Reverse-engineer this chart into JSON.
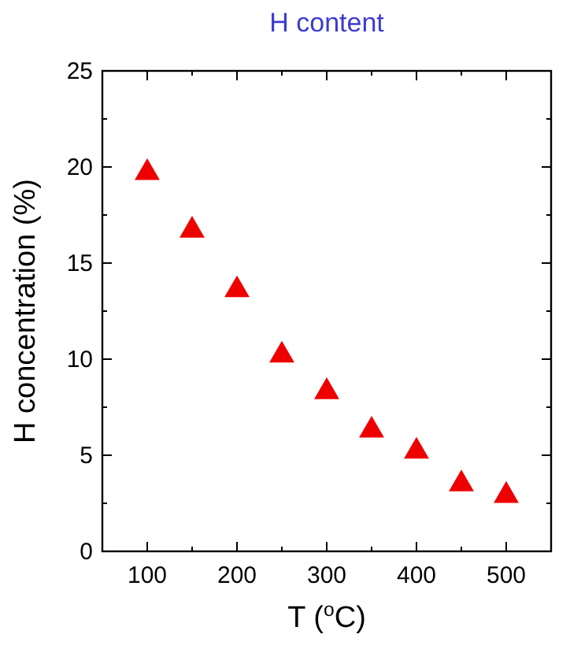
{
  "chart_data": {
    "type": "scatter",
    "title": "H content",
    "xlabel": "T ($^{o}$C)",
    "ylabel": "H concentration (%)",
    "x": [
      100,
      150,
      200,
      250,
      300,
      350,
      400,
      450,
      500
    ],
    "series": [
      {
        "color": "#ee0000",
        "values": [
          19.7,
          16.7,
          13.6,
          10.2,
          8.3,
          6.3,
          5.2,
          3.5,
          2.9
        ]
      }
    ],
    "marker": "triangle",
    "xlim": [
      50,
      550
    ],
    "xticks": [
      100,
      200,
      300,
      400,
      500
    ],
    "ylim": [
      0,
      25
    ],
    "yticks": [
      0,
      5,
      10,
      15,
      20,
      25
    ]
  }
}
